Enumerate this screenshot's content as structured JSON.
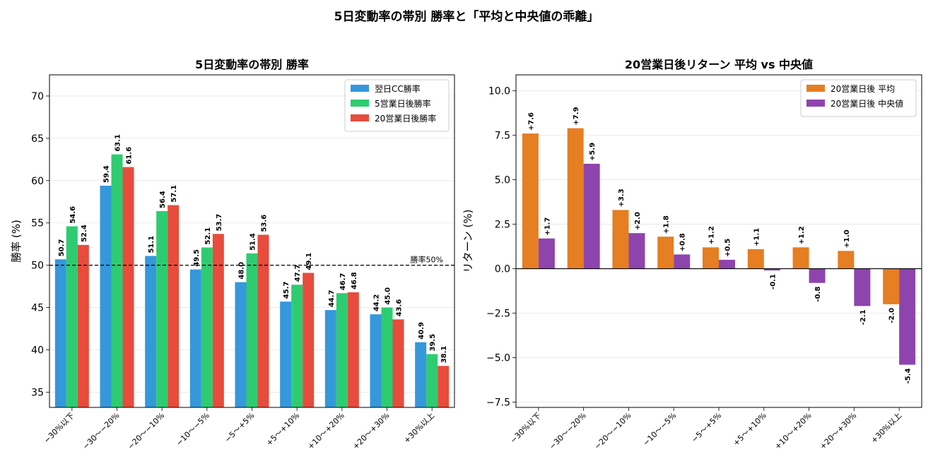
{
  "suptitle": "5日変動率の帯別 勝率と「平均と中央値の乖離」",
  "chart_data": [
    {
      "type": "bar",
      "title": "5日変動率の帯別 勝率",
      "xlabel": "",
      "ylabel": "勝率 (%)",
      "ylim": [
        33.2,
        72.5
      ],
      "yticks": [
        35,
        40,
        45,
        50,
        55,
        60,
        65,
        70
      ],
      "grid": "y",
      "legend_position": "top-right",
      "categories": [
        "-30%以下",
        "-30〜-20%",
        "-20〜-10%",
        "-10〜-5%",
        "-5〜+5%",
        "+5〜+10%",
        "+10〜+20%",
        "+20〜+30%",
        "+30%以上"
      ],
      "series": [
        {
          "name": "翌日CC勝率",
          "color": "#3498db",
          "values": [
            50.7,
            59.4,
            51.1,
            49.5,
            48.0,
            45.7,
            44.7,
            44.2,
            40.9
          ]
        },
        {
          "name": "5営業日後勝率",
          "color": "#2ecc71",
          "values": [
            54.6,
            63.1,
            56.4,
            52.1,
            51.4,
            47.7,
            46.7,
            45.0,
            39.5
          ]
        },
        {
          "name": "20営業日後勝率",
          "color": "#e74c3c",
          "values": [
            52.4,
            61.6,
            57.1,
            53.7,
            53.6,
            49.1,
            46.8,
            43.6,
            38.1
          ]
        }
      ],
      "reference_line": {
        "value": 50,
        "label": "勝率50%"
      }
    },
    {
      "type": "bar",
      "title": "20営業日後リターン 平均 vs 中央値",
      "xlabel": "",
      "ylabel": "リターン (%)",
      "ylim": [
        -7.8,
        10.9
      ],
      "yticks": [
        -7.5,
        -5.0,
        -2.5,
        0.0,
        2.5,
        5.0,
        7.5,
        10.0
      ],
      "grid": "y",
      "legend_position": "top-right",
      "categories": [
        "-30%以下",
        "-30〜-20%",
        "-20〜-10%",
        "-10〜-5%",
        "-5〜+5%",
        "+5〜+10%",
        "+10〜+20%",
        "+20〜+30%",
        "+30%以上"
      ],
      "series": [
        {
          "name": "20営業日後 平均",
          "color": "#e67e22",
          "values": [
            7.6,
            7.9,
            3.3,
            1.8,
            1.2,
            1.1,
            1.2,
            1.0,
            -2.0
          ]
        },
        {
          "name": "20営業日後 中央値",
          "color": "#8e44ad",
          "values": [
            1.7,
            5.9,
            2.0,
            0.8,
            0.5,
            -0.1,
            -0.8,
            -2.1,
            -5.4
          ]
        }
      ],
      "reference_line": {
        "value": 0,
        "label": ""
      }
    }
  ]
}
